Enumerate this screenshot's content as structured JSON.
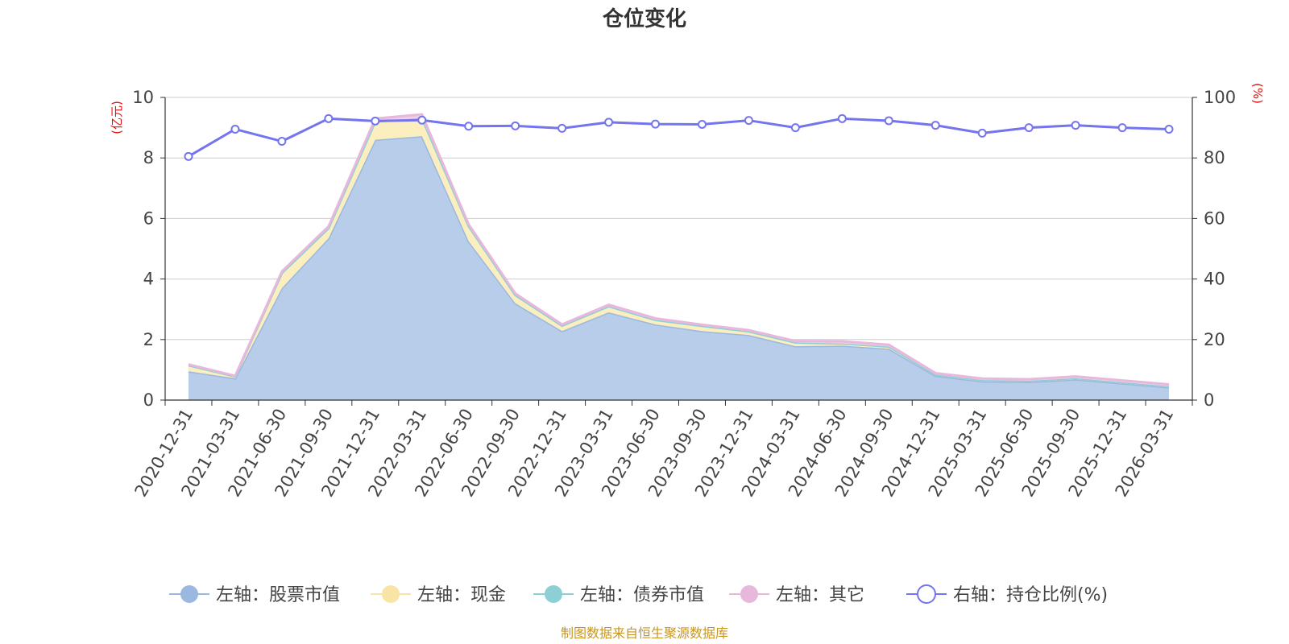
{
  "chart_data": {
    "type": "area",
    "title": "仓位变化",
    "left_axis": {
      "unit_label": "(亿元)",
      "ylim": [
        0,
        10
      ],
      "ticks": [
        "0",
        "2",
        "4",
        "6",
        "8",
        "10"
      ]
    },
    "right_axis": {
      "unit_label": "(%)",
      "ylim": [
        0,
        100
      ],
      "ticks": [
        "0",
        "20",
        "40",
        "60",
        "80",
        "100"
      ]
    },
    "categories": [
      "2020-12-31",
      "2021-03-31",
      "2021-06-30",
      "2021-09-30",
      "2021-12-31",
      "2022-03-31",
      "2022-06-30",
      "2022-09-30",
      "2022-12-31",
      "2023-03-31",
      "2023-06-30",
      "2023-09-30",
      "2023-12-31",
      "2024-03-31",
      "2024-06-30",
      "2024-09-30",
      "2024-12-31",
      "2025-03-31",
      "2025-06-30",
      "2025-09-30",
      "2025-12-31",
      "2026-03-31"
    ],
    "series": [
      {
        "name": "左轴：股票市值",
        "axis": "left",
        "kind": "stacked-area",
        "color": "#9bb8e0",
        "fill": "#b7cdea",
        "values": [
          0.95,
          0.72,
          3.7,
          5.35,
          8.6,
          8.72,
          5.25,
          3.2,
          2.28,
          2.9,
          2.5,
          2.28,
          2.15,
          1.78,
          1.8,
          1.7,
          0.8,
          0.62,
          0.6,
          0.68,
          0.55,
          0.42
        ]
      },
      {
        "name": "左轴：现金",
        "axis": "left",
        "kind": "stacked-area",
        "color": "#f8e4a5",
        "fill": "#fbeebf",
        "values": [
          0.2,
          0.06,
          0.5,
          0.33,
          0.6,
          0.6,
          0.5,
          0.27,
          0.18,
          0.2,
          0.15,
          0.17,
          0.12,
          0.12,
          0.07,
          0.07,
          0.04,
          0.04,
          0.04,
          0.04,
          0.04,
          0.04
        ]
      },
      {
        "name": "左轴：债券市值",
        "axis": "left",
        "kind": "stacked-area",
        "color": "#8ccfd5",
        "fill": "#a9dde0",
        "values": [
          0,
          0,
          0,
          0,
          0,
          0,
          0,
          0,
          0,
          0,
          0,
          0,
          0,
          0,
          0,
          0,
          0,
          0,
          0,
          0,
          0,
          0
        ]
      },
      {
        "name": "左轴：其它",
        "axis": "left",
        "kind": "stacked-area",
        "color": "#e8b7dc",
        "fill": "#f0cfe7",
        "values": [
          0.03,
          0.02,
          0.05,
          0.06,
          0.1,
          0.12,
          0.06,
          0.05,
          0.04,
          0.05,
          0.05,
          0.04,
          0.04,
          0.05,
          0.07,
          0.06,
          0.05,
          0.05,
          0.05,
          0.06,
          0.06,
          0.06
        ]
      },
      {
        "name": "右轴：持仓比例(%)",
        "axis": "right",
        "kind": "line",
        "color": "#7474ee",
        "values": [
          80.5,
          89.5,
          85.5,
          93,
          92.2,
          92.5,
          90.5,
          90.6,
          89.8,
          91.8,
          91.2,
          91.1,
          92.4,
          90,
          93,
          92.3,
          90.8,
          88.2,
          90,
          90.8,
          90,
          89.5
        ]
      }
    ],
    "legend": [
      {
        "label": "左轴：股票市值",
        "marker": "filled-circle",
        "color": "#9bb8e0"
      },
      {
        "label": "左轴：现金",
        "marker": "filled-circle",
        "color": "#f8e4a5"
      },
      {
        "label": "左轴：债券市值",
        "marker": "filled-circle",
        "color": "#8ccfd5"
      },
      {
        "label": "左轴：其它",
        "marker": "filled-circle",
        "color": "#e8b7dc"
      },
      {
        "label": "右轴：持仓比例(%)",
        "marker": "hollow-circle",
        "color": "#7474ee"
      }
    ],
    "legend_position": "bottom-center",
    "grid": true,
    "source": "制图数据来自恒生聚源数据库"
  },
  "colors": {
    "title": "#333333",
    "axis_unit": "#e01010",
    "axis_line": "#333333",
    "grid_line": "#cccccc",
    "tick_text": "#444444",
    "source": "#c8961e"
  }
}
